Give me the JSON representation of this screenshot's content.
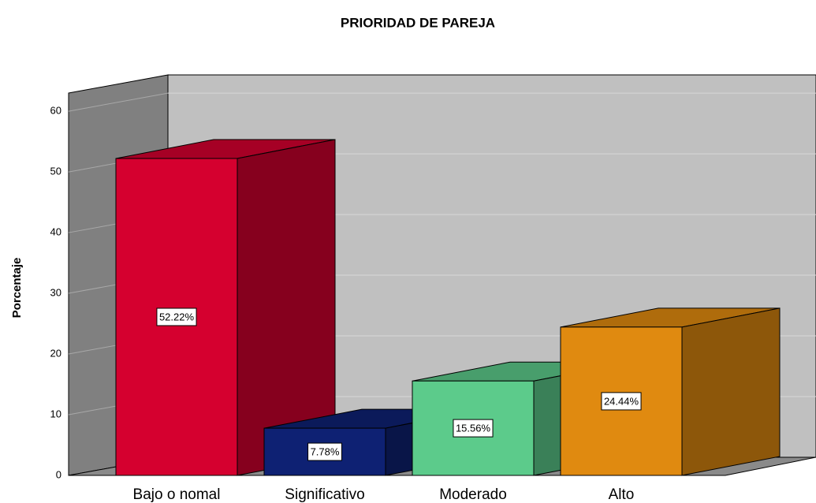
{
  "chart_data": {
    "type": "bar3d",
    "title": "PRIORIDAD DE PAREJA",
    "y_label": "Porcentaje",
    "categories": [
      "Bajo o nomal",
      "Significativo",
      "Moderado",
      "Alto"
    ],
    "values": [
      52.22,
      7.78,
      15.56,
      24.44
    ],
    "value_labels": [
      "52.22%",
      "7.78%",
      "15.56%",
      "24.44%"
    ],
    "colors": [
      "#d5002f",
      "#0e2173",
      "#5ccb8b",
      "#e08a10"
    ],
    "ylim": [
      0,
      63
    ],
    "yticks": [
      0,
      10,
      20,
      30,
      40,
      50,
      60
    ],
    "grid": true
  }
}
